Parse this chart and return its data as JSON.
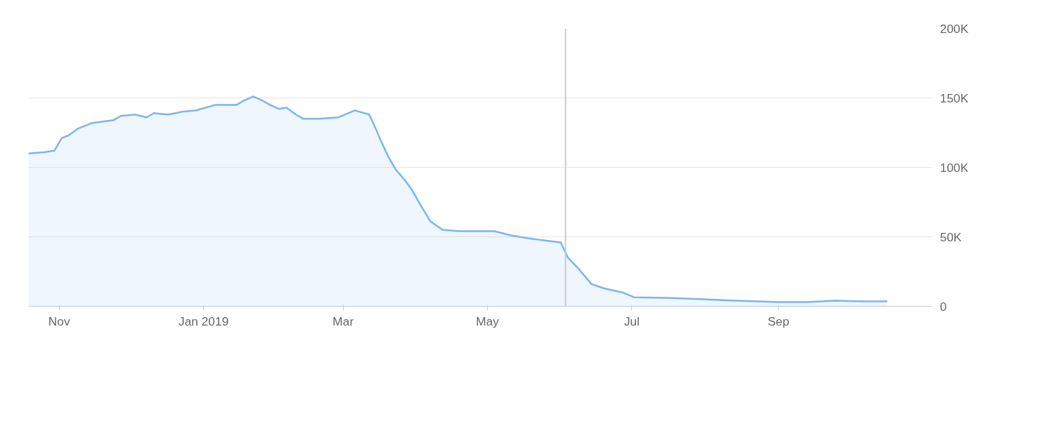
{
  "chart_data": {
    "type": "area",
    "x": [
      "2018-10-19",
      "2018-10-26",
      "2018-10-30",
      "2018-11-02",
      "2018-11-05",
      "2018-11-09",
      "2018-11-15",
      "2018-11-24",
      "2018-11-27",
      "2018-12-03",
      "2018-12-08",
      "2018-12-11",
      "2018-12-17",
      "2018-12-23",
      "2018-12-29",
      "2019-01-06",
      "2019-01-15",
      "2019-01-18",
      "2019-01-22",
      "2019-01-26",
      "2019-01-29",
      "2019-02-02",
      "2019-02-05",
      "2019-02-09",
      "2019-02-12",
      "2019-02-19",
      "2019-02-27",
      "2019-03-06",
      "2019-03-12",
      "2019-03-14",
      "2019-03-17",
      "2019-03-20",
      "2019-03-23",
      "2019-03-27",
      "2019-03-30",
      "2019-04-03",
      "2019-04-07",
      "2019-04-12",
      "2019-04-19",
      "2019-04-26",
      "2019-05-04",
      "2019-05-11",
      "2019-05-18",
      "2019-05-27",
      "2019-06-01",
      "2019-06-04",
      "2019-06-08",
      "2019-06-14",
      "2019-06-19",
      "2019-06-27",
      "2019-07-02",
      "2019-07-16",
      "2019-07-31",
      "2019-08-14",
      "2019-09-01",
      "2019-09-13",
      "2019-09-25",
      "2019-10-06",
      "2019-10-17"
    ],
    "series": [
      {
        "color": "#7cb5ec",
        "values": [
          110000,
          111000,
          112000,
          121000,
          123000,
          128000,
          132000,
          134000,
          137000,
          138000,
          136000,
          139000,
          138000,
          140000,
          141000,
          145000,
          145000,
          148000,
          151000,
          148000,
          145000,
          142000,
          143000,
          138000,
          135000,
          135000,
          136000,
          141000,
          138000,
          131000,
          119000,
          108000,
          99000,
          91000,
          84000,
          72000,
          61000,
          55000,
          54000,
          54000,
          54000,
          51000,
          49000,
          47000,
          46000,
          35000,
          28000,
          16000,
          13000,
          10000,
          6500,
          6000,
          5000,
          4000,
          3000,
          3000,
          4000,
          3500,
          3500
        ]
      }
    ],
    "xlim": [
      "2018-10-19",
      "2019-11-05"
    ],
    "xticks": [
      {
        "value": "2018-11-01",
        "label": "Nov"
      },
      {
        "value": "2019-01-01",
        "label": "Jan 2019"
      },
      {
        "value": "2019-03-01",
        "label": "Mar"
      },
      {
        "value": "2019-05-01",
        "label": "May"
      },
      {
        "value": "2019-07-01",
        "label": "Jul"
      },
      {
        "value": "2019-09-01",
        "label": "Sep"
      }
    ],
    "ylim": [
      0,
      200000
    ],
    "yticks": [
      0,
      {
        "value": 50000,
        "label": "50K"
      },
      {
        "value": 100000,
        "label": "100K"
      },
      {
        "value": 150000,
        "label": "150K"
      },
      {
        "value": 200000,
        "label": "200K"
      }
    ],
    "grid": "y",
    "ref_lines": [
      {
        "axis": "x",
        "value": "2019-06-03",
        "color": "#cccccc"
      }
    ]
  }
}
